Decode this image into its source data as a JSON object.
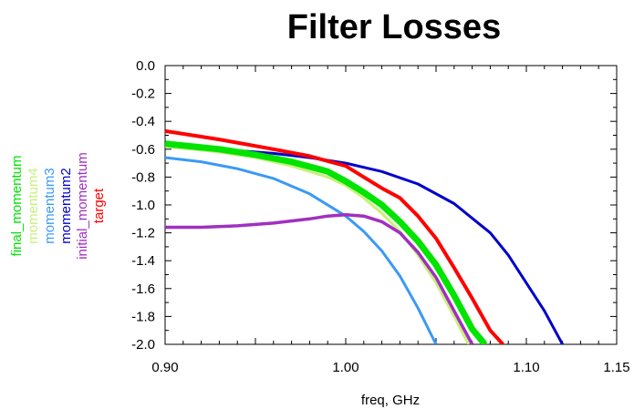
{
  "chart_data": {
    "type": "line",
    "title": "Filter Losses",
    "xlabel": "freq, GHz",
    "ylabel": "",
    "xlim": [
      0.9,
      1.15
    ],
    "ylim": [
      -2.0,
      0.0
    ],
    "x_ticks": [
      "0.90",
      "1.00",
      "1.10",
      "1.15"
    ],
    "x_tick_values": [
      0.9,
      1.0,
      1.1,
      1.15
    ],
    "y_ticks": [
      "0.0",
      "-0.2",
      "-0.4",
      "-0.6",
      "-0.8",
      "-1.0",
      "-1.2",
      "-1.4",
      "-1.6",
      "-1.8",
      "-2.0"
    ],
    "y_tick_values": [
      0.0,
      -0.2,
      -0.4,
      -0.6,
      -0.8,
      -1.0,
      -1.2,
      -1.4,
      -1.6,
      -1.8,
      -2.0
    ],
    "legend_placement": "left, rotated",
    "grid": false,
    "series": [
      {
        "name": "final_momentum",
        "color": "#00e400",
        "x": [
          0.9,
          0.93,
          0.95,
          0.97,
          0.99,
          1.0,
          1.01,
          1.02,
          1.03,
          1.04,
          1.05,
          1.06,
          1.07,
          1.077
        ],
        "y": [
          -0.56,
          -0.6,
          -0.64,
          -0.69,
          -0.76,
          -0.83,
          -0.91,
          -1.0,
          -1.12,
          -1.26,
          -1.43,
          -1.65,
          -1.89,
          -2.0
        ]
      },
      {
        "name": "momentum4",
        "color": "#c8f07a",
        "x": [
          0.9,
          0.93,
          0.95,
          0.97,
          0.99,
          1.0,
          1.01,
          1.02,
          1.03,
          1.04,
          1.05,
          1.06,
          1.068
        ],
        "y": [
          -0.58,
          -0.62,
          -0.66,
          -0.72,
          -0.8,
          -0.86,
          -0.95,
          -1.06,
          -1.19,
          -1.36,
          -1.56,
          -1.8,
          -2.0
        ]
      },
      {
        "name": "momentum3",
        "color": "#3a9af5",
        "x": [
          0.9,
          0.92,
          0.94,
          0.96,
          0.98,
          1.0,
          1.01,
          1.02,
          1.03,
          1.04,
          1.05
        ],
        "y": [
          -0.66,
          -0.69,
          -0.74,
          -0.81,
          -0.92,
          -1.08,
          -1.19,
          -1.33,
          -1.51,
          -1.74,
          -2.0
        ]
      },
      {
        "name": "momentum2",
        "color": "#0000cc",
        "x": [
          0.9,
          0.93,
          0.96,
          0.98,
          1.0,
          1.02,
          1.04,
          1.06,
          1.08,
          1.09,
          1.1,
          1.11,
          1.12
        ],
        "y": [
          -0.57,
          -0.6,
          -0.63,
          -0.66,
          -0.7,
          -0.76,
          -0.85,
          -0.99,
          -1.2,
          -1.36,
          -1.56,
          -1.76,
          -2.0
        ]
      },
      {
        "name": "initial_momentum",
        "color": "#a030c0",
        "x": [
          0.9,
          0.92,
          0.94,
          0.96,
          0.98,
          0.99,
          1.0,
          1.01,
          1.02,
          1.03,
          1.04,
          1.05,
          1.06,
          1.07
        ],
        "y": [
          -1.16,
          -1.16,
          -1.15,
          -1.13,
          -1.1,
          -1.08,
          -1.07,
          -1.08,
          -1.12,
          -1.2,
          -1.34,
          -1.52,
          -1.76,
          -2.0
        ]
      },
      {
        "name": "target",
        "color": "#ff0000",
        "x": [
          0.9,
          0.93,
          0.96,
          0.98,
          1.0,
          1.01,
          1.02,
          1.03,
          1.04,
          1.05,
          1.06,
          1.07,
          1.08,
          1.087
        ],
        "y": [
          -0.47,
          -0.53,
          -0.6,
          -0.65,
          -0.72,
          -0.8,
          -0.88,
          -0.95,
          -1.08,
          -1.24,
          -1.45,
          -1.67,
          -1.9,
          -2.0
        ]
      }
    ]
  }
}
